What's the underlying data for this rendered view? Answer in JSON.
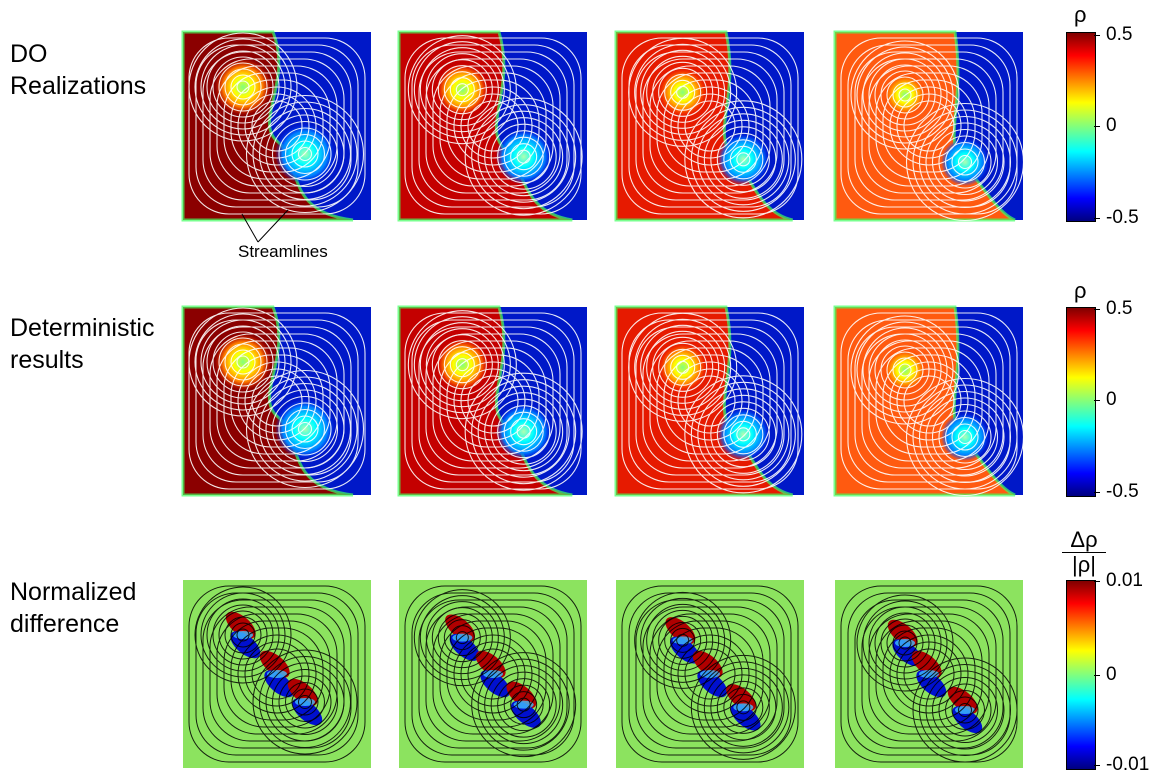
{
  "rows": [
    {
      "label": "DO\nRealizations"
    },
    {
      "label": "Deterministic\nresults"
    },
    {
      "label": "Normalized\ndifference"
    }
  ],
  "colorbars": [
    {
      "symbol": "ρ",
      "ticks": [
        "0.5",
        "0",
        "-0.5"
      ]
    },
    {
      "symbol": "ρ",
      "ticks": [
        "0.5",
        "0",
        "-0.5"
      ]
    },
    {
      "symbol_num": "Δρ",
      "symbol_den": "|ρ|",
      "ticks": [
        "0.01",
        "0",
        "-0.01"
      ]
    }
  ],
  "annotation": "Streamlines",
  "colors": {
    "streamline_light": "#ffffff",
    "streamline_dark": "#000000"
  }
}
